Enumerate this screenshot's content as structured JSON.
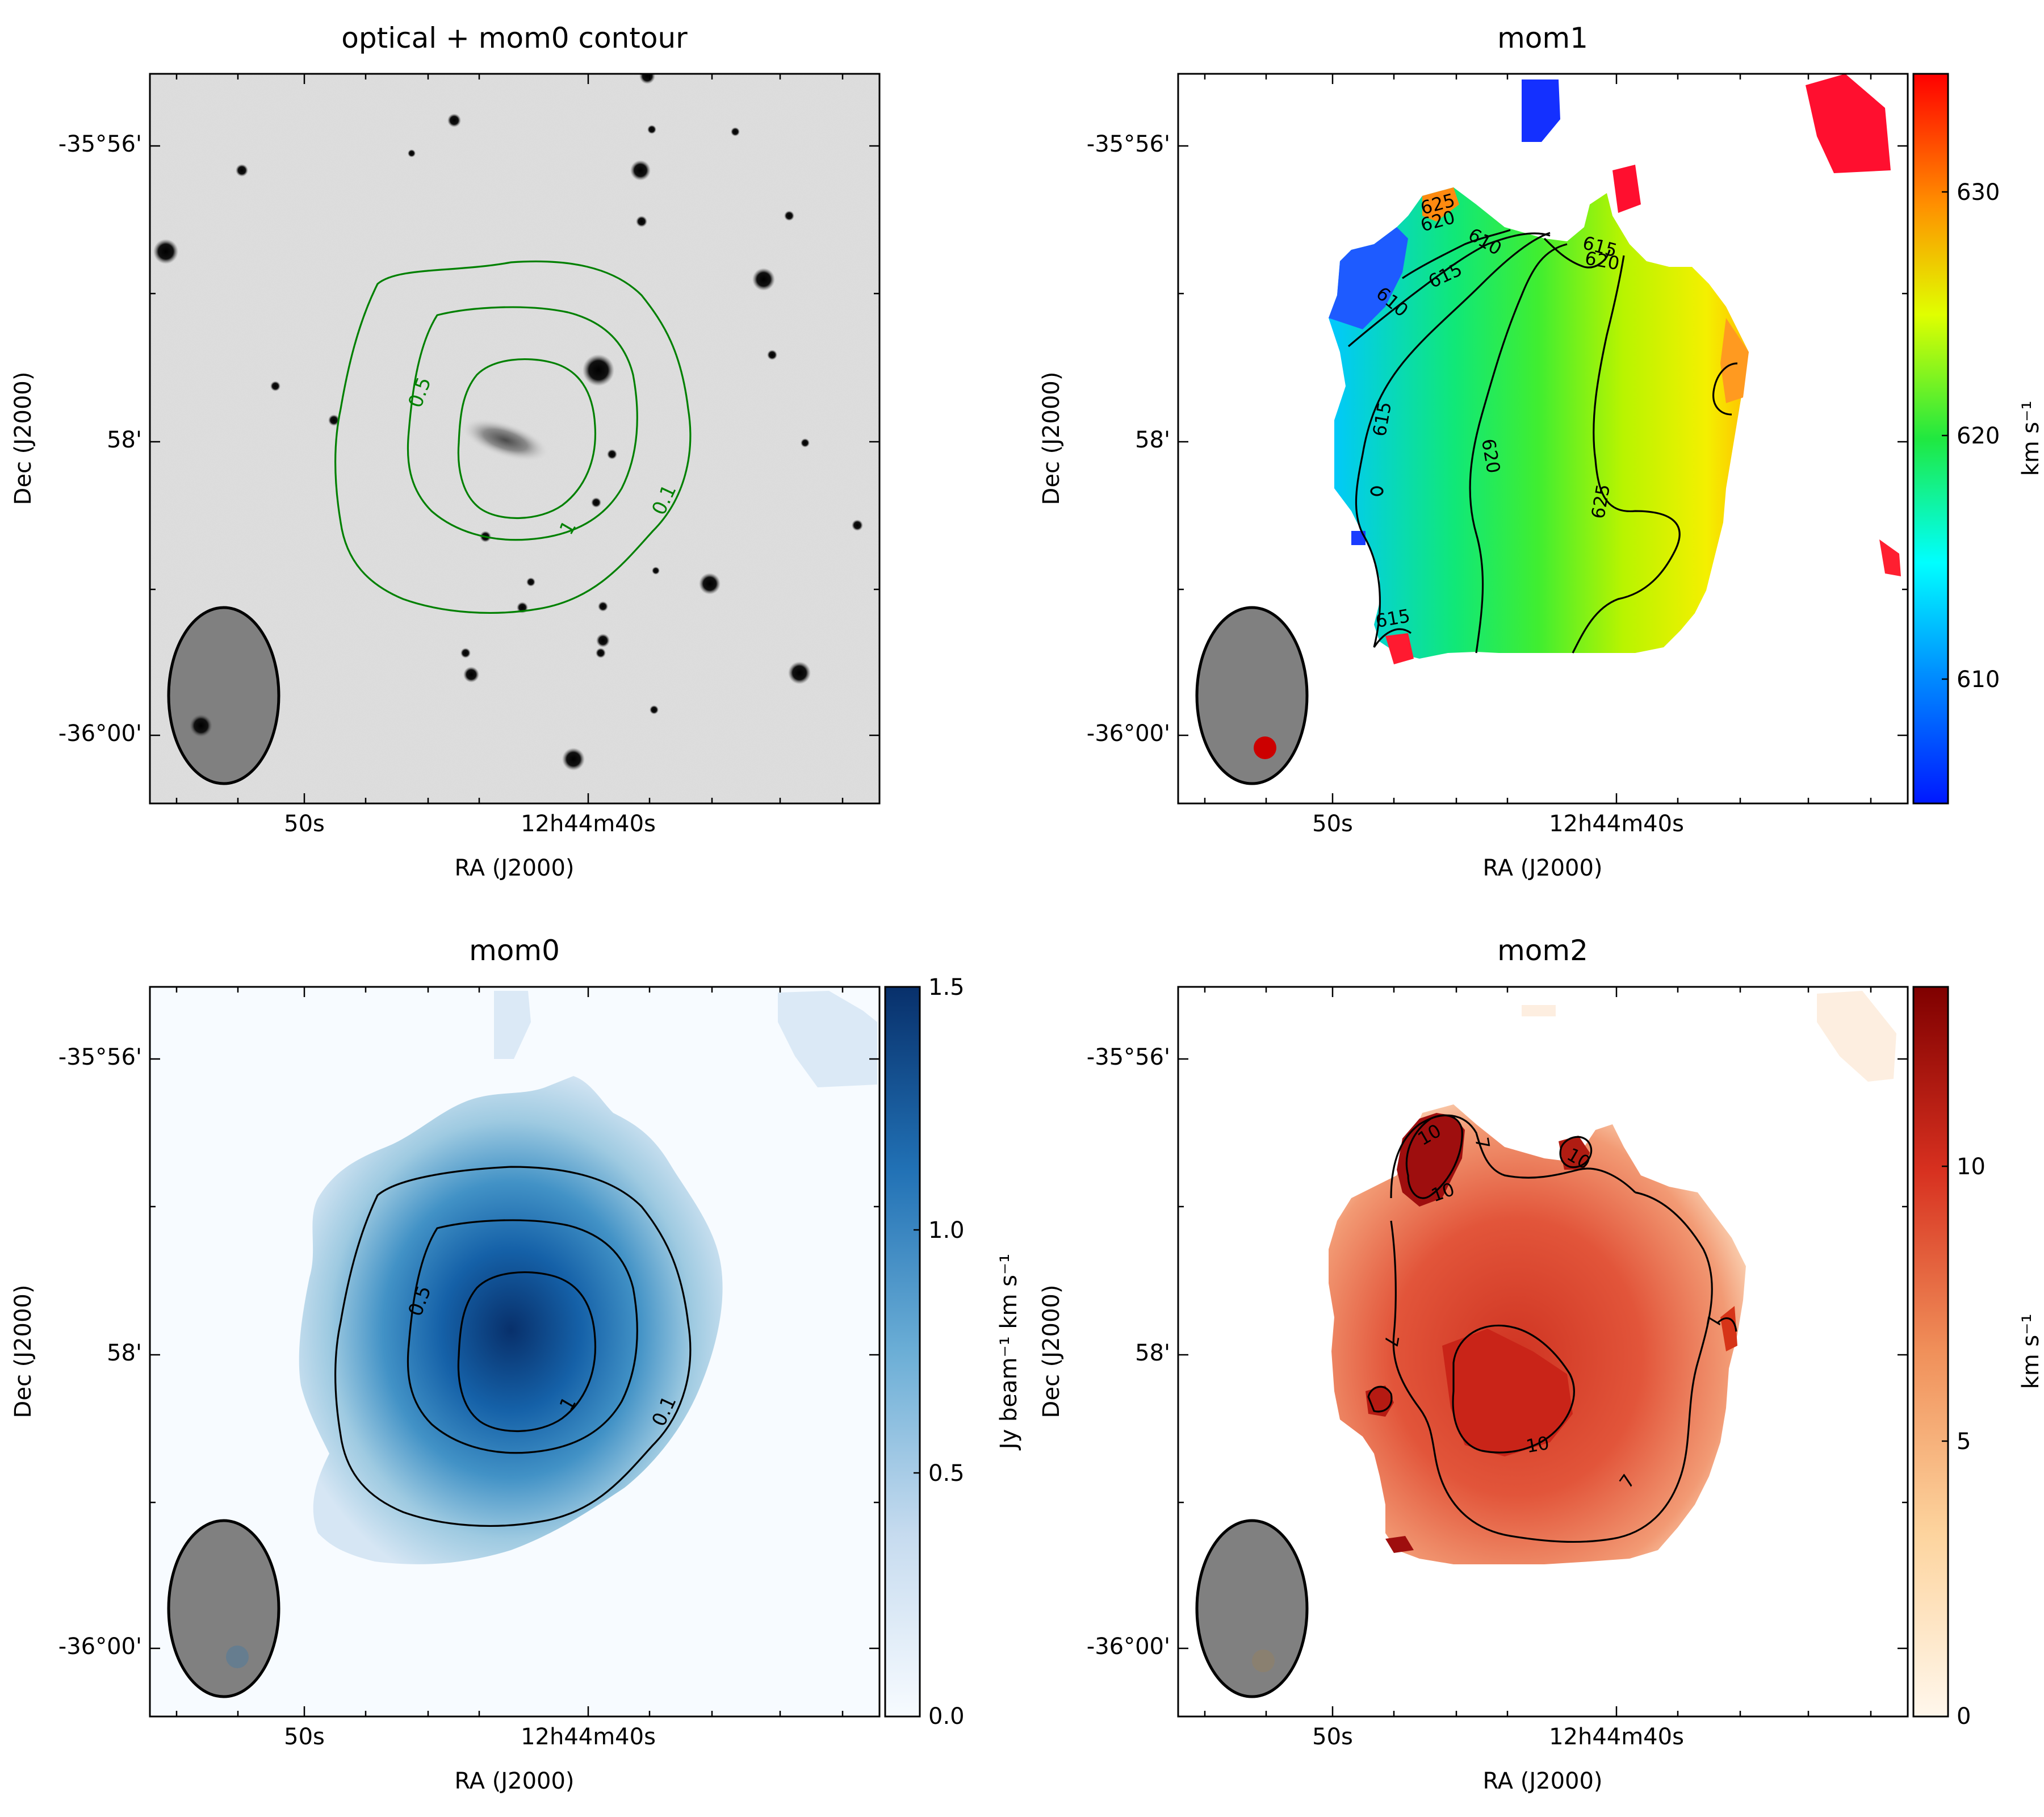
{
  "panels": [
    {
      "id": "optical",
      "title": "optical + mom0 contour",
      "xlabel": "RA (J2000)",
      "ylabel": "Dec (J2000)",
      "xticks": [
        "50s",
        "12h44m40s"
      ],
      "yticks": [
        "-35°56'",
        "58'",
        "-36°00'"
      ],
      "contour_color": "#008000",
      "contour_labels": [
        "0.5",
        "1",
        "0.1"
      ]
    },
    {
      "id": "mom1",
      "title": "mom1",
      "xlabel": "RA (J2000)",
      "ylabel": "Dec (J2000)",
      "xticks": [
        "50s",
        "12h44m40s"
      ],
      "yticks": [
        "-35°56'",
        "58'",
        "-36°00'"
      ],
      "contour_color": "#000000",
      "contour_labels": [
        "625",
        "620",
        "610",
        "615",
        "615",
        "620",
        "610",
        "615",
        "615",
        "620",
        "625",
        "615"
      ],
      "colorbar": {
        "label": "km s⁻¹",
        "ticks": [
          "610",
          "620",
          "630"
        ],
        "range": [
          604.5,
          634.5
        ],
        "cmap": "jet"
      }
    },
    {
      "id": "mom0",
      "title": "mom0",
      "xlabel": "RA (J2000)",
      "ylabel": "Dec (J2000)",
      "xticks": [
        "50s",
        "12h44m40s"
      ],
      "yticks": [
        "-35°56'",
        "58'",
        "-36°00'"
      ],
      "contour_color": "#000000",
      "contour_labels": [
        "0.5",
        "1",
        "0.1"
      ],
      "colorbar": {
        "label": "Jy beam⁻¹ km s⁻¹",
        "ticks": [
          "0.0",
          "0.5",
          "1.0",
          "1.5"
        ],
        "range": [
          0,
          1.5
        ],
        "cmap": "Blues"
      }
    },
    {
      "id": "mom2",
      "title": "mom2",
      "xlabel": "RA (J2000)",
      "ylabel": "Dec (J2000)",
      "xticks": [
        "50s",
        "12h44m40s"
      ],
      "yticks": [
        "-35°56'",
        "58'",
        "-36°00'"
      ],
      "contour_color": "#000000",
      "contour_labels": [
        "10",
        "7",
        "10",
        "10",
        "7",
        "7",
        "10",
        "7"
      ],
      "colorbar": {
        "label": "km s⁻¹",
        "ticks": [
          "0",
          "5",
          "10"
        ],
        "range": [
          0,
          13.9
        ],
        "cmap": "OrRd"
      }
    }
  ],
  "chart_data": [
    {
      "type": "heatmap",
      "title": "optical + mom0 contour",
      "xlabel": "RA (J2000)",
      "ylabel": "Dec (J2000)",
      "xticks": [
        "50s",
        "12h44m40s"
      ],
      "yticks": [
        "-35°56'",
        "58'",
        "-36°00'"
      ],
      "contour_levels": [
        0.1,
        0.5,
        1
      ]
    },
    {
      "type": "heatmap",
      "title": "mom1",
      "xlabel": "RA (J2000)",
      "ylabel": "Dec (J2000)",
      "xticks": [
        "50s",
        "12h44m40s"
      ],
      "yticks": [
        "-35°56'",
        "58'",
        "-36°00'"
      ],
      "contour_levels": [
        610,
        615,
        620,
        625
      ],
      "colorbar_range": [
        604.5,
        634.5
      ],
      "colorbar_ticks": [
        610,
        620,
        630
      ],
      "colorbar_label": "km s⁻¹"
    },
    {
      "type": "heatmap",
      "title": "mom0",
      "xlabel": "RA (J2000)",
      "ylabel": "Dec (J2000)",
      "xticks": [
        "50s",
        "12h44m40s"
      ],
      "yticks": [
        "-35°56'",
        "58'",
        "-36°00'"
      ],
      "contour_levels": [
        0.1,
        0.5,
        1
      ],
      "colorbar_range": [
        0,
        1.5
      ],
      "colorbar_ticks": [
        0.0,
        0.5,
        1.0,
        1.5
      ],
      "colorbar_label": "Jy beam⁻¹ km s⁻¹"
    },
    {
      "type": "heatmap",
      "title": "mom2",
      "xlabel": "RA (J2000)",
      "ylabel": "Dec (J2000)",
      "xticks": [
        "50s",
        "12h44m40s"
      ],
      "yticks": [
        "-35°56'",
        "58'",
        "-36°00'"
      ],
      "contour_levels": [
        7,
        10
      ],
      "colorbar_range": [
        0,
        13.9
      ],
      "colorbar_ticks": [
        0,
        5,
        10
      ],
      "colorbar_label": "km s⁻¹"
    }
  ]
}
